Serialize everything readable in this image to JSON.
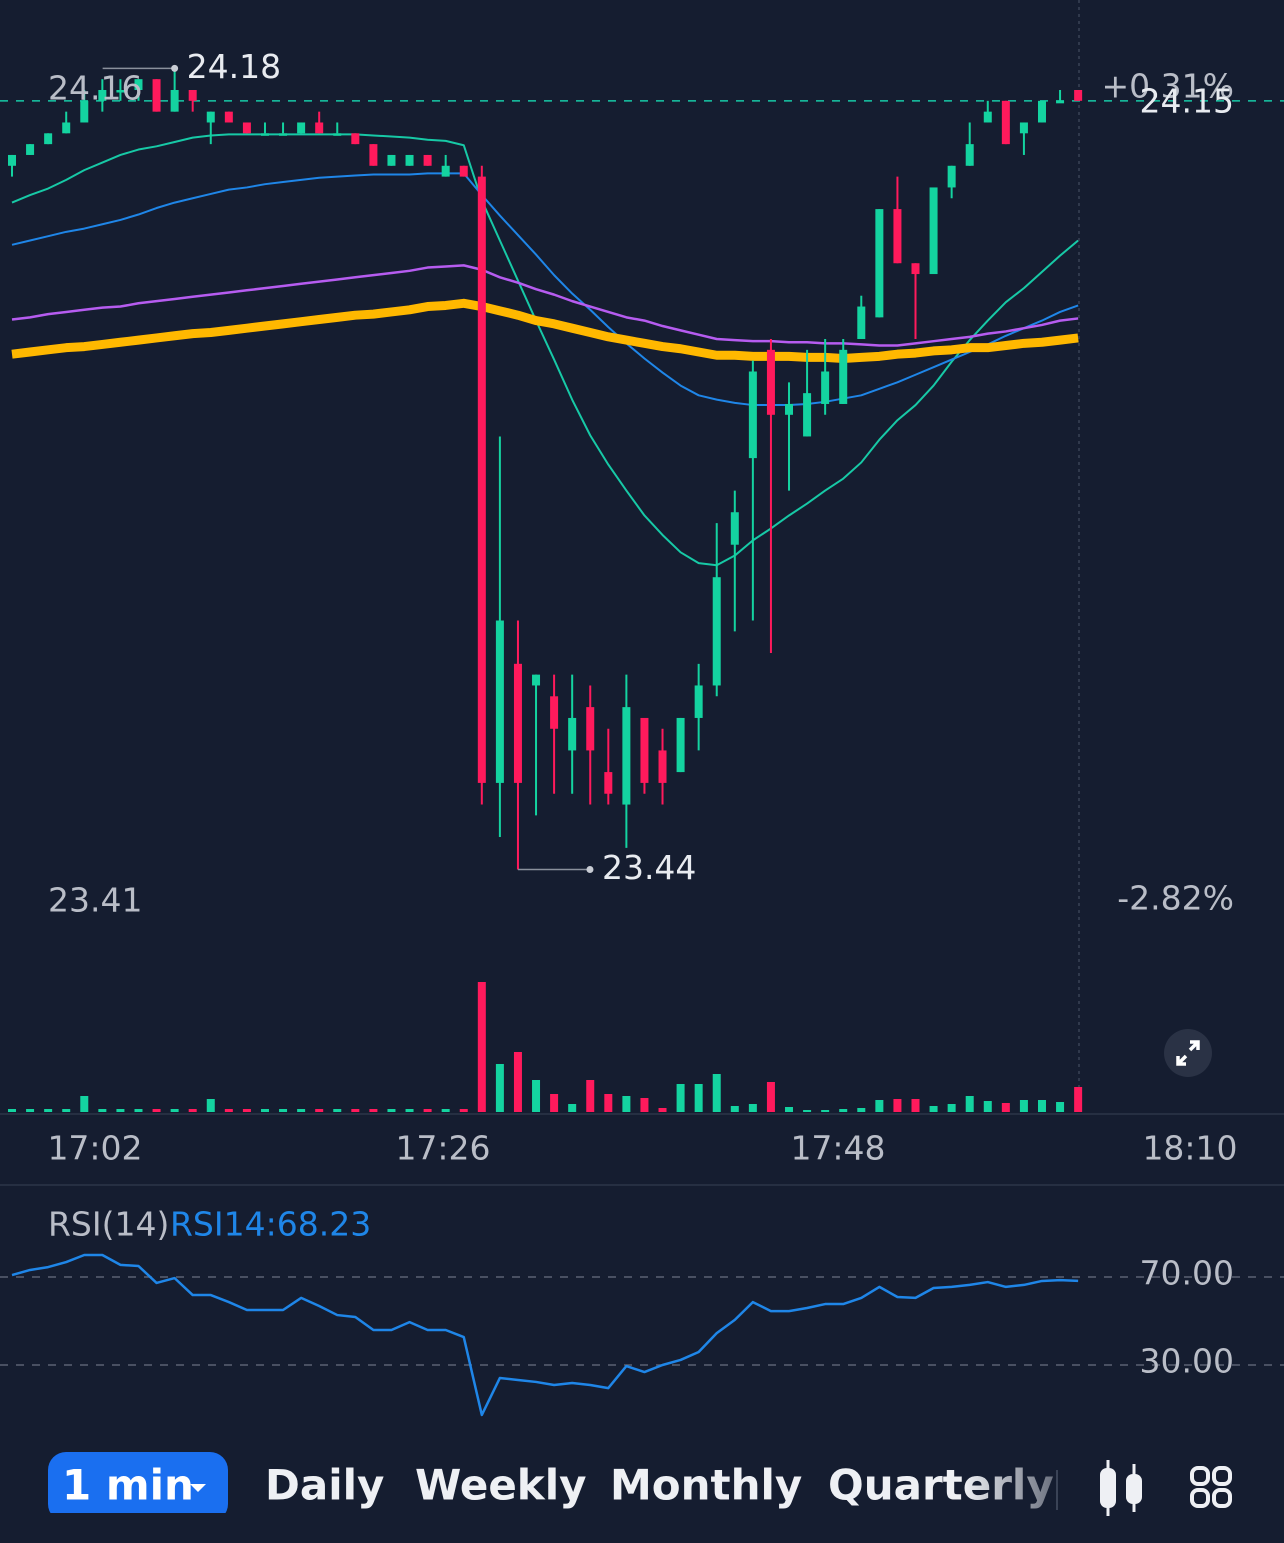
{
  "chart_data": [
    {
      "type": "candlestick",
      "ylim": [
        23.41,
        24.16
      ],
      "yticks": [
        24.16,
        23.41
      ],
      "y2lim": [
        -2.82,
        0.31
      ],
      "y2ticks": [
        {
          "value": 0.31,
          "label": "+0.31%"
        },
        {
          "value": -2.82,
          "label": "-2.82%"
        }
      ],
      "last_price": 24.15,
      "max_label": 24.18,
      "min_label": 23.44,
      "time_labels": [
        "17:02",
        "17:26",
        "17:48",
        "18:10"
      ],
      "up_color": "#14d3a0",
      "down_color": "#ff1a5c",
      "open": [
        24.09,
        24.1,
        24.11,
        24.12,
        24.13,
        24.15,
        24.16,
        24.16,
        24.17,
        24.14,
        24.16,
        24.13,
        24.14,
        24.13,
        24.12,
        24.12,
        24.12,
        24.13,
        24.12,
        24.12,
        24.11,
        24.09,
        24.09,
        24.1,
        24.08,
        24.09,
        24.08,
        23.52,
        23.63,
        23.61,
        23.6,
        23.55,
        23.59,
        23.53,
        23.5,
        23.58,
        23.55,
        23.53,
        23.58,
        23.61,
        23.74,
        23.82,
        23.92,
        23.86,
        23.84,
        23.87,
        23.87,
        23.93,
        23.95,
        24.05,
        24.0,
        23.99,
        24.07,
        24.09,
        24.13,
        24.15,
        24.12,
        24.13,
        24.15,
        24.16
      ],
      "high": [
        24.1,
        24.11,
        24.12,
        24.14,
        24.16,
        24.17,
        24.17,
        24.17,
        24.17,
        24.18,
        24.16,
        24.14,
        24.14,
        24.13,
        24.13,
        24.13,
        24.13,
        24.14,
        24.13,
        24.12,
        24.11,
        24.1,
        24.1,
        24.1,
        24.1,
        24.09,
        24.09,
        23.84,
        23.67,
        23.62,
        23.62,
        23.62,
        23.61,
        23.57,
        23.62,
        23.58,
        23.57,
        23.58,
        23.63,
        23.76,
        23.79,
        23.91,
        23.93,
        23.89,
        23.92,
        23.93,
        23.93,
        23.97,
        24.05,
        24.08,
        24.0,
        24.07,
        24.09,
        24.13,
        24.15,
        24.15,
        24.13,
        24.15,
        24.16,
        24.16
      ],
      "low": [
        24.08,
        24.1,
        24.11,
        24.12,
        24.13,
        24.14,
        24.15,
        24.15,
        24.14,
        24.14,
        24.14,
        24.11,
        24.13,
        24.12,
        24.12,
        24.12,
        24.12,
        24.12,
        24.12,
        24.11,
        24.09,
        24.09,
        24.09,
        24.09,
        24.08,
        24.08,
        23.5,
        23.47,
        23.44,
        23.49,
        23.51,
        23.51,
        23.5,
        23.5,
        23.46,
        23.51,
        23.5,
        23.53,
        23.55,
        23.6,
        23.66,
        23.67,
        23.64,
        23.79,
        23.84,
        23.86,
        23.87,
        23.93,
        23.95,
        24.0,
        23.93,
        23.99,
        24.06,
        24.09,
        24.13,
        24.11,
        24.1,
        24.13,
        24.15,
        24.15
      ],
      "close": [
        24.1,
        24.11,
        24.12,
        24.13,
        24.15,
        24.16,
        24.16,
        24.17,
        24.14,
        24.16,
        24.15,
        24.14,
        24.13,
        24.12,
        24.12,
        24.12,
        24.13,
        24.12,
        24.12,
        24.11,
        24.09,
        24.1,
        24.1,
        24.09,
        24.09,
        24.08,
        23.52,
        23.67,
        23.52,
        23.62,
        23.57,
        23.58,
        23.55,
        23.51,
        23.59,
        23.52,
        23.52,
        23.58,
        23.61,
        23.71,
        23.77,
        23.9,
        23.86,
        23.87,
        23.88,
        23.9,
        23.92,
        23.96,
        24.05,
        24.0,
        23.99,
        24.07,
        24.09,
        24.11,
        24.14,
        24.11,
        24.13,
        24.15,
        24.15,
        24.15
      ],
      "volume": [
        3,
        3,
        3,
        3,
        16,
        3,
        3,
        3,
        3,
        3,
        3,
        13,
        3,
        3,
        3,
        3,
        3,
        3,
        3,
        3,
        3,
        3,
        3,
        3,
        3,
        3,
        130,
        48,
        60,
        32,
        18,
        8,
        32,
        18,
        16,
        14,
        4,
        28,
        28,
        38,
        6,
        8,
        30,
        5,
        2,
        2,
        3,
        4,
        12,
        13,
        13,
        6,
        8,
        16,
        11,
        9,
        12,
        12,
        10,
        25
      ],
      "lines": [
        {
          "color": "#17c9a6",
          "width": 2,
          "values": [
            24.056,
            24.063,
            24.069,
            24.077,
            24.086,
            24.093,
            24.1,
            24.105,
            24.108,
            24.112,
            24.116,
            24.118,
            24.119,
            24.119,
            24.119,
            24.119,
            24.119,
            24.119,
            24.119,
            24.119,
            24.118,
            24.117,
            24.116,
            24.114,
            24.113,
            24.109,
            24.058,
            24.021,
            23.984,
            23.947,
            23.911,
            23.874,
            23.841,
            23.814,
            23.79,
            23.767,
            23.749,
            23.733,
            23.723,
            23.721,
            23.73,
            23.744,
            23.755,
            23.767,
            23.778,
            23.79,
            23.801,
            23.816,
            23.837,
            23.855,
            23.869,
            23.887,
            23.909,
            23.929,
            23.947,
            23.964,
            23.977,
            23.992,
            24.007,
            24.021
          ]
        },
        {
          "color": "#1f86e8",
          "width": 2,
          "values": [
            24.017,
            24.021,
            24.025,
            24.029,
            24.032,
            24.036,
            24.04,
            24.045,
            24.051,
            24.056,
            24.06,
            24.064,
            24.068,
            24.07,
            24.073,
            24.075,
            24.077,
            24.079,
            24.08,
            24.081,
            24.082,
            24.082,
            24.082,
            24.083,
            24.083,
            24.083,
            24.063,
            24.044,
            24.026,
            24.008,
            23.989,
            23.972,
            23.957,
            23.941,
            23.926,
            23.912,
            23.899,
            23.887,
            23.878,
            23.874,
            23.871,
            23.869,
            23.869,
            23.869,
            23.87,
            23.872,
            23.875,
            23.878,
            23.884,
            23.89,
            23.897,
            23.904,
            23.911,
            23.918,
            23.925,
            23.933,
            23.94,
            23.947,
            23.955,
            23.961
          ]
        },
        {
          "color": "#b65cf0",
          "width": 2.5,
          "values": [
            23.948,
            23.95,
            23.953,
            23.955,
            23.957,
            23.959,
            23.96,
            23.963,
            23.965,
            23.967,
            23.969,
            23.971,
            23.973,
            23.975,
            23.977,
            23.979,
            23.981,
            23.983,
            23.985,
            23.987,
            23.989,
            23.991,
            23.993,
            23.996,
            23.997,
            23.998,
            23.994,
            23.987,
            23.982,
            23.976,
            23.971,
            23.965,
            23.96,
            23.955,
            23.95,
            23.947,
            23.942,
            23.938,
            23.934,
            23.93,
            23.929,
            23.928,
            23.928,
            23.927,
            23.927,
            23.926,
            23.926,
            23.925,
            23.924,
            23.924,
            23.926,
            23.928,
            23.93,
            23.932,
            23.935,
            23.937,
            23.94,
            23.943,
            23.947,
            23.949
          ]
        },
        {
          "color": "#ffb800",
          "width": 9,
          "values": [
            23.916,
            23.918,
            23.92,
            23.922,
            23.923,
            23.925,
            23.927,
            23.929,
            23.931,
            23.933,
            23.935,
            23.936,
            23.938,
            23.94,
            23.942,
            23.944,
            23.946,
            23.948,
            23.95,
            23.952,
            23.953,
            23.955,
            23.957,
            23.96,
            23.961,
            23.963,
            23.96,
            23.956,
            23.952,
            23.947,
            23.944,
            23.94,
            23.936,
            23.932,
            23.929,
            23.926,
            23.923,
            23.921,
            23.918,
            23.915,
            23.915,
            23.914,
            23.914,
            23.914,
            23.913,
            23.913,
            23.912,
            23.913,
            23.914,
            23.916,
            23.917,
            23.919,
            23.92,
            23.922,
            23.922,
            23.924,
            23.926,
            23.927,
            23.929,
            23.931
          ]
        }
      ]
    },
    {
      "type": "line",
      "title": "RSI(14)",
      "legend": "RSI14:68.23",
      "color": "#1f86e8",
      "ylim": [
        0,
        100
      ],
      "yticks": [
        {
          "value": 70,
          "label": "70.00"
        },
        {
          "value": 30,
          "label": "30.00"
        }
      ],
      "values": [
        70.9,
        73.2,
        74.5,
        76.8,
        80.0,
        80.0,
        75.5,
        75.0,
        67.3,
        69.5,
        61.8,
        61.8,
        58.6,
        55.0,
        55.0,
        55.0,
        60.5,
        56.8,
        52.7,
        51.8,
        45.9,
        45.9,
        49.5,
        45.9,
        45.9,
        42.7,
        7.3,
        24.1,
        23.2,
        22.3,
        20.9,
        21.8,
        20.9,
        19.5,
        29.5,
        26.8,
        30.0,
        32.3,
        35.9,
        44.5,
        50.5,
        58.6,
        54.5,
        54.5,
        55.9,
        57.7,
        57.7,
        60.5,
        65.5,
        60.9,
        60.5,
        65.0,
        65.5,
        66.4,
        67.7,
        65.5,
        66.4,
        68.2,
        68.6,
        68.23
      ]
    }
  ],
  "toolbar": {
    "active": "1 min",
    "tabs": [
      "Daily",
      "Weekly",
      "Monthly",
      "Quarterly"
    ]
  }
}
